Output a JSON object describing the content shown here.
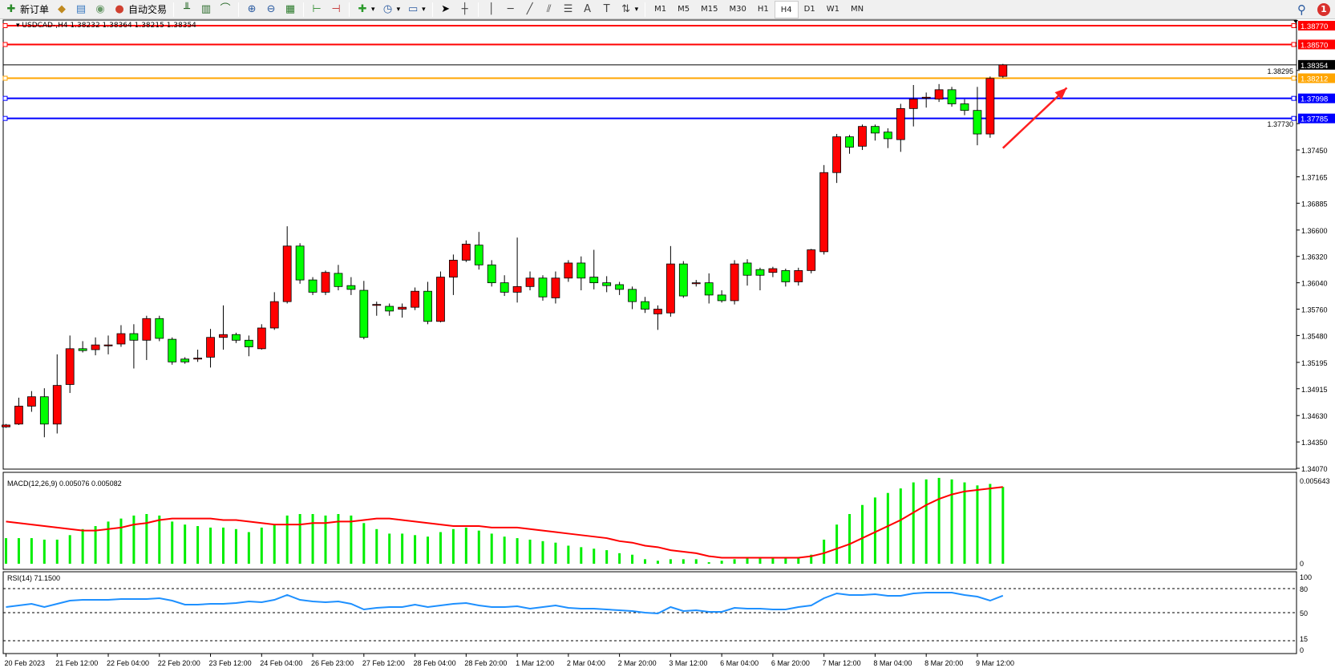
{
  "toolbar": {
    "items": [
      {
        "type": "button",
        "icon": "new-order-icon",
        "glyph": "✚",
        "color": "#2a8a2a",
        "label": "新订单"
      },
      {
        "type": "button",
        "icon": "market-watch-icon",
        "glyph": "◆",
        "color": "#c08a20"
      },
      {
        "type": "button",
        "icon": "navigator-icon",
        "glyph": "▤",
        "color": "#3a7ac0"
      },
      {
        "type": "button",
        "icon": "signal-icon",
        "glyph": "◉",
        "color": "#6a9a6a"
      },
      {
        "type": "button",
        "icon": "auto-trading-icon",
        "glyph": "●",
        "color": "#d04030",
        "label": "自动交易"
      },
      {
        "type": "sep"
      },
      {
        "type": "button",
        "icon": "bar-chart-icon",
        "glyph": "╨",
        "color": "#2a6a2a"
      },
      {
        "type": "button",
        "icon": "candlestick-icon",
        "glyph": "▥",
        "color": "#2a6a2a"
      },
      {
        "type": "button",
        "icon": "line-chart-icon",
        "glyph": "⌒",
        "color": "#2a6a2a"
      },
      {
        "type": "sep"
      },
      {
        "type": "button",
        "icon": "zoom-in-icon",
        "glyph": "⊕",
        "color": "#2a5aa0"
      },
      {
        "type": "button",
        "icon": "zoom-out-icon",
        "glyph": "⊖",
        "color": "#2a5aa0"
      },
      {
        "type": "button",
        "icon": "tile-windows-icon",
        "glyph": "▦",
        "color": "#2a7a2a"
      },
      {
        "type": "sep"
      },
      {
        "type": "button",
        "icon": "auto-scroll-icon",
        "glyph": "⊢",
        "color": "#2a8a2a"
      },
      {
        "type": "button",
        "icon": "chart-shift-icon",
        "glyph": "⊣",
        "color": "#c02a2a"
      },
      {
        "type": "sep"
      },
      {
        "type": "button",
        "icon": "indicators-icon",
        "glyph": "✚",
        "color": "#2a9a2a",
        "dropdown": true
      },
      {
        "type": "button",
        "icon": "periods-clock-icon",
        "glyph": "◷",
        "color": "#2a5aa0",
        "dropdown": true
      },
      {
        "type": "button",
        "icon": "templates-icon",
        "glyph": "▭",
        "color": "#2a5aa0",
        "dropdown": true
      },
      {
        "type": "sep"
      },
      {
        "type": "button",
        "icon": "cursor-icon",
        "glyph": "➤",
        "color": "#000"
      },
      {
        "type": "button",
        "icon": "crosshair-icon",
        "glyph": "┼",
        "color": "#444"
      },
      {
        "type": "sep"
      },
      {
        "type": "button",
        "icon": "vertical-line-icon",
        "glyph": "│",
        "color": "#444"
      },
      {
        "type": "button",
        "icon": "horizontal-line-icon",
        "glyph": "─",
        "color": "#444"
      },
      {
        "type": "button",
        "icon": "trendline-icon",
        "glyph": "╱",
        "color": "#444"
      },
      {
        "type": "button",
        "icon": "equidistant-channel-icon",
        "glyph": "⫽",
        "color": "#444"
      },
      {
        "type": "button",
        "icon": "fibonacci-icon",
        "glyph": "☰",
        "color": "#444"
      },
      {
        "type": "button",
        "icon": "text-icon",
        "glyph": "A",
        "color": "#444"
      },
      {
        "type": "button",
        "icon": "text-label-icon",
        "glyph": "T",
        "color": "#444"
      },
      {
        "type": "button",
        "icon": "arrows-icon",
        "glyph": "⇅",
        "color": "#444",
        "dropdown": true
      },
      {
        "type": "sep"
      }
    ],
    "timeframes": [
      "M1",
      "M5",
      "M15",
      "M30",
      "H1",
      "H4",
      "D1",
      "W1",
      "MN"
    ],
    "active_timeframe": "H4",
    "notification_count": "1"
  },
  "chart": {
    "header": "USDCAD-,H4  1.38232 1.38364 1.38215 1.38354",
    "symbol": "USDCAD-",
    "timeframe": "H4",
    "colors": {
      "up": "#ff0000",
      "down": "#00ff00",
      "macd_hist": "#00ee00",
      "signal": "#ff0000",
      "rsi": "#1e90ff"
    },
    "price_ticks": [
      "1.38295",
      "1.37730",
      "1.37450",
      "1.37165",
      "1.36885",
      "1.36600",
      "1.36320",
      "1.36040",
      "1.35760",
      "1.35480",
      "1.35195",
      "1.34915",
      "1.34630",
      "1.34350",
      "1.34070"
    ],
    "ylim": [
      1.3407,
      1.3877
    ],
    "hlines": [
      {
        "price": "1.38770",
        "color": "#ff0000"
      },
      {
        "price": "1.38570",
        "color": "#ff0000"
      },
      {
        "price": "1.38212",
        "color": "#ffa500"
      },
      {
        "price": "1.37998",
        "color": "#0000ff"
      },
      {
        "price": "1.37785",
        "color": "#0000ff"
      }
    ],
    "current_price": "1.38354",
    "arrow": {
      "color": "#ff2020",
      "from_price": 1.3747,
      "to_price": 1.3811,
      "from_bar": 79,
      "to_bar": 84
    },
    "x_labels": [
      "20 Feb 2023",
      "21 Feb 12:00",
      "22 Feb 04:00",
      "22 Feb 20:00",
      "23 Feb 12:00",
      "24 Feb 04:00",
      "26 Feb 23:00",
      "27 Feb 12:00",
      "28 Feb 04:00",
      "28 Feb 20:00",
      "1 Mar 12:00",
      "2 Mar 04:00",
      "2 Mar 20:00",
      "3 Mar 12:00",
      "6 Mar 04:00",
      "6 Mar 20:00",
      "7 Mar 12:00",
      "8 Mar 04:00",
      "8 Mar 20:00",
      "9 Mar 12:00"
    ],
    "ohlc": [
      [
        1.3451,
        1.3454,
        1.345,
        1.3453
      ],
      [
        1.3454,
        1.3482,
        1.3453,
        1.3473
      ],
      [
        1.3473,
        1.3489,
        1.3467,
        1.3483
      ],
      [
        1.3483,
        1.3492,
        1.344,
        1.3454
      ],
      [
        1.3454,
        1.3528,
        1.3444,
        1.3495
      ],
      [
        1.3496,
        1.3548,
        1.3487,
        1.3534
      ],
      [
        1.3534,
        1.3542,
        1.353,
        1.3532
      ],
      [
        1.3533,
        1.3546,
        1.3527,
        1.3538
      ],
      [
        1.3537,
        1.3548,
        1.3528,
        1.3538
      ],
      [
        1.3539,
        1.3559,
        1.3536,
        1.355
      ],
      [
        1.355,
        1.356,
        1.3513,
        1.3543
      ],
      [
        1.3543,
        1.3569,
        1.3522,
        1.3566
      ],
      [
        1.3566,
        1.3569,
        1.3542,
        1.3545
      ],
      [
        1.3544,
        1.3546,
        1.3517,
        1.352
      ],
      [
        1.3523,
        1.3525,
        1.3518,
        1.352
      ],
      [
        1.3523,
        1.3533,
        1.352,
        1.3524
      ],
      [
        1.3525,
        1.3555,
        1.3514,
        1.3546
      ],
      [
        1.3546,
        1.358,
        1.3533,
        1.3549
      ],
      [
        1.3549,
        1.3551,
        1.354,
        1.3543
      ],
      [
        1.3543,
        1.3548,
        1.3526,
        1.3536
      ],
      [
        1.3534,
        1.356,
        1.3533,
        1.3556
      ],
      [
        1.3556,
        1.3594,
        1.3554,
        1.3584
      ],
      [
        1.3584,
        1.3664,
        1.3582,
        1.3643
      ],
      [
        1.3643,
        1.3646,
        1.3603,
        1.3607
      ],
      [
        1.3607,
        1.361,
        1.3591,
        1.3594
      ],
      [
        1.3594,
        1.3617,
        1.3591,
        1.3615
      ],
      [
        1.3614,
        1.3623,
        1.3596,
        1.36
      ],
      [
        1.3601,
        1.361,
        1.3591,
        1.3597
      ],
      [
        1.3596,
        1.3606,
        1.3544,
        1.3546
      ],
      [
        1.358,
        1.3584,
        1.3569,
        1.3581
      ],
      [
        1.3579,
        1.3582,
        1.3569,
        1.3574
      ],
      [
        1.3576,
        1.3582,
        1.3567,
        1.3578
      ],
      [
        1.3578,
        1.3599,
        1.3575,
        1.3595
      ],
      [
        1.3595,
        1.3605,
        1.356,
        1.3563
      ],
      [
        1.3563,
        1.3616,
        1.3562,
        1.361
      ],
      [
        1.361,
        1.3634,
        1.3591,
        1.3628
      ],
      [
        1.3628,
        1.3649,
        1.3626,
        1.3645
      ],
      [
        1.3644,
        1.3658,
        1.3618,
        1.3623
      ],
      [
        1.3623,
        1.3628,
        1.36,
        1.3604
      ],
      [
        1.3604,
        1.3612,
        1.359,
        1.3594
      ],
      [
        1.3594,
        1.3652,
        1.3583,
        1.36
      ],
      [
        1.36,
        1.3616,
        1.3596,
        1.3609
      ],
      [
        1.3609,
        1.3612,
        1.3585,
        1.3589
      ],
      [
        1.3588,
        1.3616,
        1.3582,
        1.3609
      ],
      [
        1.3609,
        1.3628,
        1.3605,
        1.3625
      ],
      [
        1.3625,
        1.3632,
        1.3596,
        1.3609
      ],
      [
        1.361,
        1.3639,
        1.3597,
        1.3604
      ],
      [
        1.3604,
        1.3611,
        1.3594,
        1.3601
      ],
      [
        1.3602,
        1.3605,
        1.3591,
        1.3597
      ],
      [
        1.3597,
        1.36,
        1.3576,
        1.3584
      ],
      [
        1.3584,
        1.3589,
        1.3572,
        1.3576
      ],
      [
        1.3571,
        1.358,
        1.3554,
        1.3576
      ],
      [
        1.3572,
        1.3643,
        1.3568,
        1.3624
      ],
      [
        1.3624,
        1.3627,
        1.3588,
        1.359
      ],
      [
        1.3603,
        1.3607,
        1.36,
        1.3604
      ],
      [
        1.3604,
        1.3614,
        1.3582,
        1.3591
      ],
      [
        1.3591,
        1.3596,
        1.3583,
        1.3585
      ],
      [
        1.3585,
        1.3628,
        1.3581,
        1.3624
      ],
      [
        1.3625,
        1.3629,
        1.3601,
        1.3612
      ],
      [
        1.3618,
        1.362,
        1.3596,
        1.3612
      ],
      [
        1.3615,
        1.3621,
        1.361,
        1.3619
      ],
      [
        1.3617,
        1.3619,
        1.36,
        1.3605
      ],
      [
        1.3605,
        1.362,
        1.3601,
        1.3617
      ],
      [
        1.3617,
        1.364,
        1.3614,
        1.3639
      ],
      [
        1.3637,
        1.3729,
        1.3634,
        1.3721
      ],
      [
        1.3721,
        1.3762,
        1.371,
        1.3759
      ],
      [
        1.3759,
        1.3761,
        1.3741,
        1.3748
      ],
      [
        1.3749,
        1.3772,
        1.3745,
        1.377
      ],
      [
        1.377,
        1.3772,
        1.3755,
        1.3763
      ],
      [
        1.3764,
        1.3768,
        1.3747,
        1.3757
      ],
      [
        1.3756,
        1.3794,
        1.3743,
        1.3789
      ],
      [
        1.3789,
        1.3814,
        1.377,
        1.3799
      ],
      [
        1.38,
        1.3806,
        1.379,
        1.3801
      ],
      [
        1.3799,
        1.3815,
        1.3796,
        1.3809
      ],
      [
        1.3809,
        1.3812,
        1.3791,
        1.3794
      ],
      [
        1.3794,
        1.3799,
        1.3782,
        1.3787
      ],
      [
        1.3787,
        1.3812,
        1.375,
        1.3762
      ],
      [
        1.3762,
        1.3823,
        1.3758,
        1.3821
      ],
      [
        1.38232,
        1.38364,
        1.38215,
        1.38354
      ]
    ]
  },
  "macd": {
    "label": "MACD(12,26,9) 0.005076 0.005082",
    "top_label": "0.005643",
    "zero_label": "0",
    "max": 0.005643,
    "hist": [
      0.0017,
      0.0017,
      0.0017,
      0.0016,
      0.0016,
      0.0019,
      0.0023,
      0.0025,
      0.0028,
      0.003,
      0.0032,
      0.0033,
      0.0032,
      0.0028,
      0.0026,
      0.0025,
      0.0024,
      0.0024,
      0.0023,
      0.0021,
      0.0024,
      0.0026,
      0.0032,
      0.0033,
      0.0033,
      0.0032,
      0.0033,
      0.0032,
      0.0027,
      0.0023,
      0.002,
      0.002,
      0.0019,
      0.0018,
      0.0021,
      0.0023,
      0.0024,
      0.0022,
      0.002,
      0.0018,
      0.0017,
      0.0016,
      0.0015,
      0.0014,
      0.0012,
      0.0011,
      0.001,
      0.0009,
      0.0007,
      0.0006,
      0.0003,
      0.0002,
      0.0003,
      0.0003,
      0.0003,
      0.0001,
      0.0002,
      0.0003,
      0.0004,
      0.0004,
      0.0004,
      0.0004,
      0.0004,
      0.0006,
      0.0016,
      0.0026,
      0.0033,
      0.0039,
      0.0044,
      0.0047,
      0.005,
      0.0054,
      0.0056,
      0.0057,
      0.0056,
      0.0054,
      0.0052,
      0.0053,
      0.0051
    ],
    "signal": [
      0.0028,
      0.0027,
      0.0026,
      0.0025,
      0.0024,
      0.0023,
      0.0022,
      0.0022,
      0.0023,
      0.0024,
      0.0026,
      0.0027,
      0.0029,
      0.003,
      0.003,
      0.003,
      0.003,
      0.0029,
      0.0029,
      0.0028,
      0.0027,
      0.0026,
      0.0026,
      0.0026,
      0.0027,
      0.0027,
      0.0028,
      0.0028,
      0.0029,
      0.003,
      0.003,
      0.0029,
      0.0028,
      0.0027,
      0.0026,
      0.0025,
      0.0025,
      0.0025,
      0.0024,
      0.0024,
      0.0024,
      0.0023,
      0.0022,
      0.0021,
      0.002,
      0.0019,
      0.0018,
      0.0017,
      0.0015,
      0.0014,
      0.0012,
      0.0011,
      0.0009,
      0.0008,
      0.0007,
      0.0005,
      0.0004,
      0.0004,
      0.0004,
      0.0004,
      0.0004,
      0.0004,
      0.0004,
      0.0005,
      0.0007,
      0.001,
      0.0013,
      0.0017,
      0.0021,
      0.0025,
      0.0029,
      0.0034,
      0.0039,
      0.0043,
      0.0046,
      0.0048,
      0.0049,
      0.005,
      0.0051
    ]
  },
  "rsi": {
    "label": "RSI(14) 71.1500",
    "levels": [
      "100",
      "80",
      "50",
      "15",
      "0"
    ],
    "dashed": [
      80,
      50,
      15
    ],
    "values": [
      57,
      59,
      61,
      57,
      61,
      65,
      66,
      66,
      66,
      67,
      67,
      67,
      68,
      65,
      60,
      60,
      61,
      61,
      62,
      64,
      63,
      66,
      72,
      66,
      64,
      63,
      64,
      61,
      54,
      56,
      57,
      57,
      60,
      57,
      59,
      61,
      62,
      59,
      57,
      57,
      58,
      55,
      57,
      59,
      56,
      55,
      55,
      54,
      53,
      52,
      50,
      49,
      57,
      52,
      53,
      51,
      51,
      56,
      55,
      55,
      54,
      54,
      57,
      59,
      68,
      74,
      72,
      72,
      73,
      71,
      71,
      74,
      75,
      75,
      75,
      72,
      70,
      65,
      71.15
    ]
  }
}
